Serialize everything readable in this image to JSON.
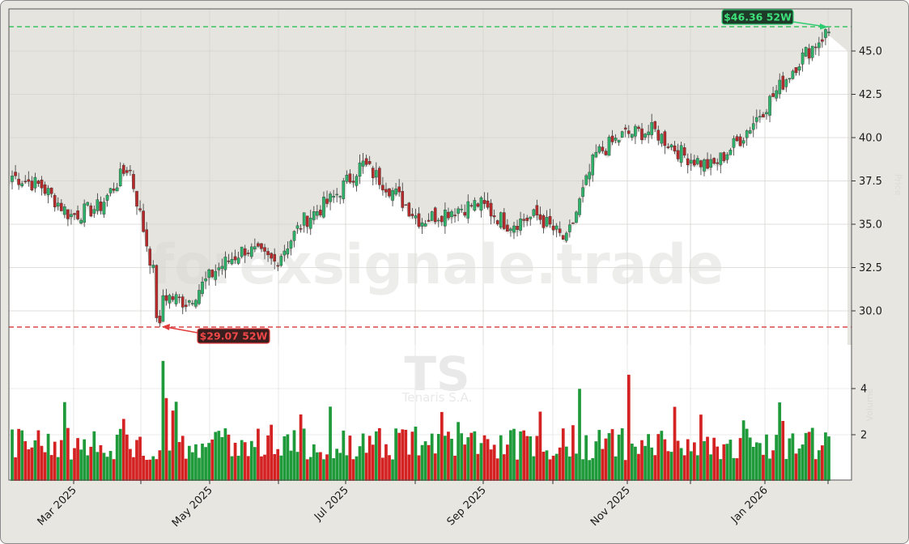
{
  "chart_data": {
    "type": "candlestick",
    "ticker": "TS",
    "company": "Tenaris S.A.",
    "watermark": "forexsignale.trade",
    "x_tick_labels": [
      "Mar 2025",
      "May 2025",
      "Jul 2025",
      "Sep 2025",
      "Nov 2025",
      "Jan 2026"
    ],
    "price_axis": {
      "ticks": [
        30.0,
        32.5,
        35.0,
        37.5,
        40.0,
        42.5,
        45.0
      ],
      "tick_labels": [
        "30.0",
        "32.5",
        "35.0",
        "37.5",
        "40.0",
        "42.5",
        "45.0"
      ],
      "range": [
        27.9,
        47.4
      ],
      "side": "right"
    },
    "volume_axis": {
      "ticks": [
        2,
        4
      ],
      "tick_labels": [
        "2",
        "4"
      ],
      "range": [
        0,
        5.4
      ],
      "side": "right"
    },
    "annotations": {
      "high_52w": {
        "label": "$46.36 52W",
        "value": 46.36,
        "color": "#2ecc71"
      },
      "low_52w": {
        "label": "$29.07 52W",
        "value": 29.07,
        "color": "#e03c3c"
      }
    },
    "colors": {
      "up": "#1f9a3a",
      "down": "#d42222",
      "candle_up": "#2db36a",
      "candle_down": "#b82a2a",
      "background": "#e8e6e1",
      "plot_bg": "#ffffff"
    },
    "weekly_close_approx": [
      {
        "date": "2025-02-10",
        "close": 37.8
      },
      {
        "date": "2025-02-24",
        "close": 37.2
      },
      {
        "date": "2025-03-03",
        "close": 35.5
      },
      {
        "date": "2025-03-17",
        "close": 36.0
      },
      {
        "date": "2025-03-31",
        "close": 38.4
      },
      {
        "date": "2025-04-07",
        "close": 31.0
      },
      {
        "date": "2025-04-14",
        "close": 30.5
      },
      {
        "date": "2025-04-28",
        "close": 32.4
      },
      {
        "date": "2025-05-12",
        "close": 33.6
      },
      {
        "date": "2025-05-26",
        "close": 32.8
      },
      {
        "date": "2025-06-09",
        "close": 35.2
      },
      {
        "date": "2025-06-23",
        "close": 36.5
      },
      {
        "date": "2025-07-07",
        "close": 38.5
      },
      {
        "date": "2025-07-21",
        "close": 37.0
      },
      {
        "date": "2025-08-04",
        "close": 35.2
      },
      {
        "date": "2025-08-18",
        "close": 35.8
      },
      {
        "date": "2025-09-01",
        "close": 36.2
      },
      {
        "date": "2025-09-15",
        "close": 35.0
      },
      {
        "date": "2025-09-29",
        "close": 35.5
      },
      {
        "date": "2025-10-13",
        "close": 34.0
      },
      {
        "date": "2025-10-27",
        "close": 39.0
      },
      {
        "date": "2025-11-10",
        "close": 40.2
      },
      {
        "date": "2025-11-24",
        "close": 40.4
      },
      {
        "date": "2025-12-08",
        "close": 39.0
      },
      {
        "date": "2025-12-22",
        "close": 38.3
      },
      {
        "date": "2026-01-05",
        "close": 40.0
      },
      {
        "date": "2026-01-19",
        "close": 42.2
      },
      {
        "date": "2026-02-02",
        "close": 44.5
      },
      {
        "date": "2026-02-09",
        "close": 46.2
      }
    ]
  }
}
